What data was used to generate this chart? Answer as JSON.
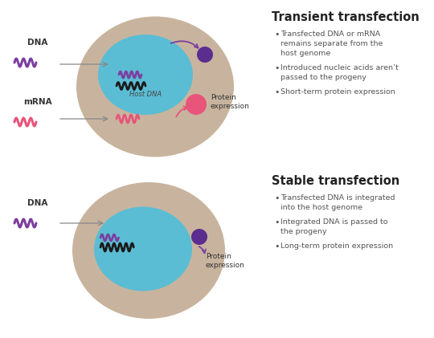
{
  "bg_color": "#ffffff",
  "cell_outer_color": "#c8b49e",
  "cell_inner_color": "#5bbdd4",
  "nucleus_dot_color": "#5b2d8e",
  "protein_dot_color": "#e8547a",
  "dna_color_purple": "#7b3fa0",
  "dna_color_pink": "#e8547a",
  "dna_color_black": "#1a1a1a",
  "arrow_color_purple": "#7b3fa0",
  "arrow_color_pink": "#e8547a",
  "arrow_color_gray": "#888888",
  "title1": "Transient transfection",
  "title2": "Stable transfection",
  "bullet1_1": "Transfected DNA or mRNA\nremains separate from the\nhost genome",
  "bullet1_2": "Introduced nucleic acids aren’t\npassed to the progeny",
  "bullet1_3": "Short-term protein expression",
  "bullet2_1": "Transfected DNA is integrated\ninto the host genome",
  "bullet2_2": "Integrated DNA is passed to\nthe progeny",
  "bullet2_3": "Long-term protein expression",
  "label_dna": "DNA",
  "label_mrna": "mRNA",
  "label_host_dna": "Host DNA",
  "label_protein_expression": "Protein\nexpression",
  "figwidth": 5.4,
  "figheight": 4.21,
  "dpi": 100
}
